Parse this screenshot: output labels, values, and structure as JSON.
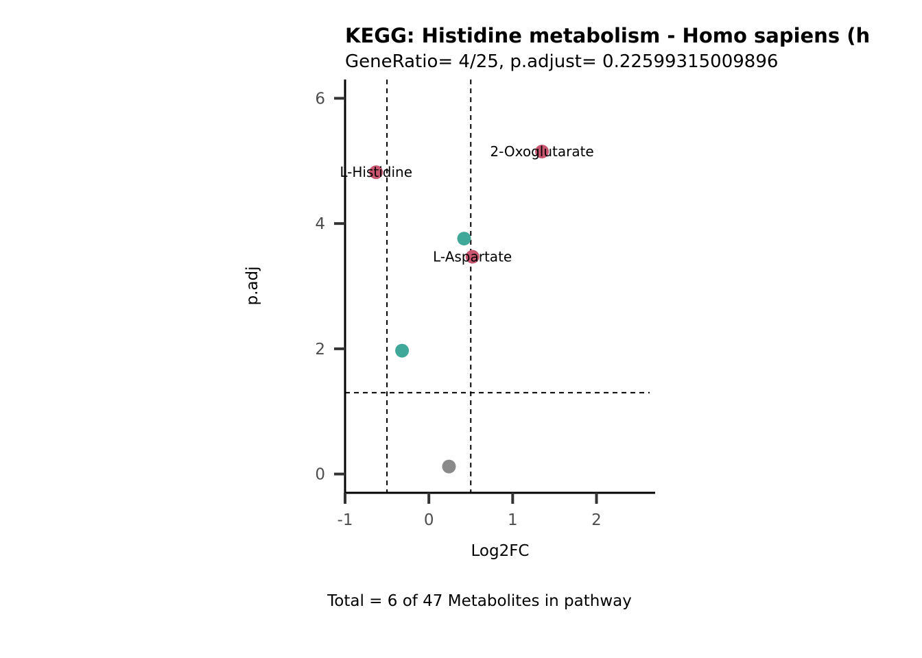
{
  "chart_data": {
    "type": "scatter",
    "title": "KEGG: Histidine metabolism - Homo sapiens (h",
    "subtitle": "GeneRatio= 4/25, p.adjust= 0.22599315009896",
    "xlabel": "Log2FC",
    "ylabel": "p.adj",
    "caption": "Total = 6 of 47 Metabolites in pathway",
    "xlim": [
      -1,
      2.7
    ],
    "ylim": [
      -0.3,
      6.3
    ],
    "x_ticks": [
      -1,
      0,
      1,
      2
    ],
    "y_ticks": [
      0,
      2,
      4,
      6
    ],
    "grid": false,
    "thresholds": {
      "x": [
        -0.5,
        0.5
      ],
      "y": 1.3
    },
    "colors": {
      "up": "#c8566f",
      "down": "#40a899",
      "ns": "#8a8a8a",
      "threshold": "#000000",
      "axis": "#000000",
      "tick": "#333333"
    },
    "points": [
      {
        "x": 1.35,
        "y": 5.15,
        "group": "up",
        "label": "2-Oxoglutarate"
      },
      {
        "x": -0.63,
        "y": 4.82,
        "group": "up",
        "label": "L-Histidine"
      },
      {
        "x": 0.52,
        "y": 3.47,
        "group": "up",
        "label": "L-Aspartate"
      },
      {
        "x": 0.42,
        "y": 3.76,
        "group": "down",
        "label": ""
      },
      {
        "x": -0.32,
        "y": 1.97,
        "group": "down",
        "label": ""
      },
      {
        "x": 0.24,
        "y": 0.12,
        "group": "ns",
        "label": ""
      }
    ]
  }
}
